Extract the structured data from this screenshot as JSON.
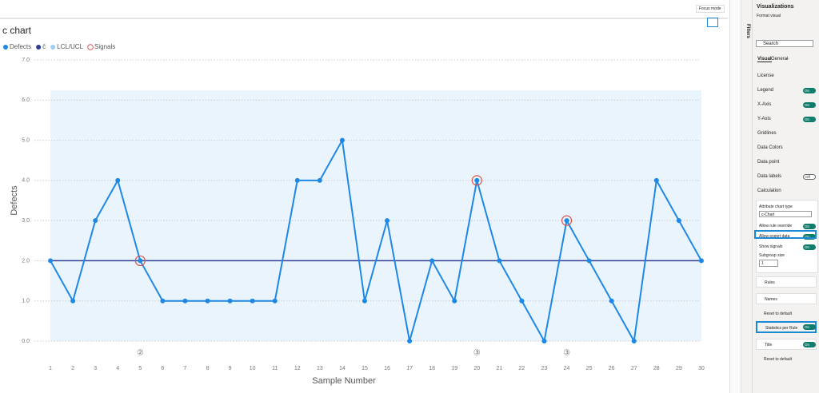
{
  "chart_data": {
    "type": "line",
    "title": "c chart",
    "x_label": "Sample Number",
    "y_label": "Defects",
    "x": [
      1,
      2,
      3,
      4,
      5,
      6,
      7,
      8,
      9,
      10,
      11,
      12,
      13,
      14,
      15,
      16,
      17,
      18,
      19,
      20,
      21,
      22,
      23,
      24,
      25,
      26,
      27,
      28,
      29,
      30
    ],
    "series": [
      {
        "name": "Defects",
        "color": "#1e88e5",
        "values": [
          2,
          1,
          3,
          4,
          2,
          1,
          1,
          1,
          1,
          1,
          1,
          4,
          4,
          5,
          1,
          3,
          0,
          2,
          1,
          4,
          2,
          1,
          0,
          3,
          2,
          1,
          0,
          4,
          3,
          2
        ]
      }
    ],
    "center": {
      "name": "c̄",
      "color": "#2e3d91",
      "value": 2
    },
    "limits": {
      "name": "LCL/UCL",
      "color": "#9fcdf2",
      "lcl": 0,
      "ucl": 6.24
    },
    "signals": {
      "name": "Signals",
      "color": "#d9534f",
      "x": [
        5,
        20,
        24
      ]
    },
    "rule_markers": [
      {
        "x": 5,
        "label": "②"
      },
      {
        "x": 20,
        "label": "③"
      },
      {
        "x": 24,
        "label": "③"
      }
    ],
    "xlim": [
      0,
      31
    ],
    "ylim": [
      0,
      7
    ],
    "yticks": [
      {
        "value": 0,
        "label": "0.0"
      },
      {
        "value": 1,
        "label": "1.0"
      },
      {
        "value": 2,
        "label": "2.0"
      },
      {
        "value": 3,
        "label": "3.0"
      },
      {
        "value": 4,
        "label": "4.0"
      },
      {
        "value": 5,
        "label": "5.0"
      },
      {
        "value": 6,
        "label": "6.0"
      },
      {
        "value": 7,
        "label": "7.0"
      }
    ],
    "grid": true
  },
  "toolbar": {
    "focus_mode": "Focus mode"
  },
  "filters": "Filters",
  "panel": {
    "title": "Visualizations",
    "subtitle": "Format visual",
    "search": "Search",
    "tabs": [
      "Visual",
      "General",
      "···"
    ],
    "items": [
      {
        "label": "License"
      },
      {
        "label": "Legend",
        "toggle": "On"
      },
      {
        "label": "X-Axis",
        "toggle": "On"
      },
      {
        "label": "Y-Axis",
        "toggle": "On"
      },
      {
        "label": "Gridlines"
      },
      {
        "label": "Data Colors"
      },
      {
        "label": "Data point"
      },
      {
        "label": "Data labels",
        "toggle": "Off"
      },
      {
        "label": "Calculation"
      }
    ],
    "calculation": {
      "chart_type_label": "Attribute chart type",
      "chart_type": "c-Chart",
      "switches": [
        {
          "label": "Allow rule override",
          "toggle": "On"
        },
        {
          "label": "Allow export data",
          "toggle": "On"
        },
        {
          "label": "Show signals",
          "toggle": "On"
        }
      ],
      "subgroup_label": "Subgroup size",
      "subgroup": "1"
    },
    "sub_items": [
      "Rules",
      "Names"
    ],
    "reset": "Reset to default",
    "stats": {
      "label": "Statistics per Rule",
      "toggle": "On"
    },
    "stats_title": {
      "label": "Title",
      "toggle": "On"
    },
    "reset2": "Reset to default"
  }
}
